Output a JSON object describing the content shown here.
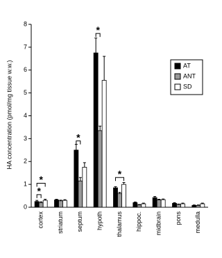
{
  "chart_data": {
    "type": "bar",
    "y_label": "HA concentration (pmol/mg tissue w.w.)",
    "categories": [
      "cortex",
      "striatum",
      "septum",
      "hypoth",
      "thalamus",
      "hippoc.",
      "midbrain",
      "pons",
      "medulla"
    ],
    "series": [
      {
        "name": "AT",
        "color": "#000000",
        "values": [
          0.25,
          0.32,
          2.5,
          6.75,
          0.85,
          0.2,
          0.42,
          0.17,
          0.08
        ],
        "errors": [
          0.05,
          0.03,
          0.25,
          0.65,
          0.05,
          0.03,
          0.05,
          0.03,
          0.02
        ]
      },
      {
        "name": "ANT",
        "color": "#999999",
        "values": [
          0.2,
          0.28,
          1.15,
          3.35,
          0.6,
          0.1,
          0.32,
          0.12,
          0.08
        ],
        "errors": [
          0.04,
          0.03,
          0.15,
          0.2,
          0.05,
          0.02,
          0.03,
          0.02,
          0.02
        ]
      },
      {
        "name": "SD",
        "color": "#ffffff",
        "values": [
          0.3,
          0.3,
          1.75,
          5.55,
          1.0,
          0.15,
          0.33,
          0.15,
          0.15
        ],
        "errors": [
          0.05,
          0.03,
          0.2,
          1.05,
          0.08,
          0.03,
          0.03,
          0.03,
          0.03
        ]
      }
    ],
    "annotations": [
      "*",
      "*",
      "*",
      "*",
      "*"
    ],
    "ylim": [
      0,
      8
    ],
    "yticks": [
      0,
      1,
      2,
      3,
      4,
      5,
      6,
      7,
      8
    ],
    "legend": "right"
  }
}
